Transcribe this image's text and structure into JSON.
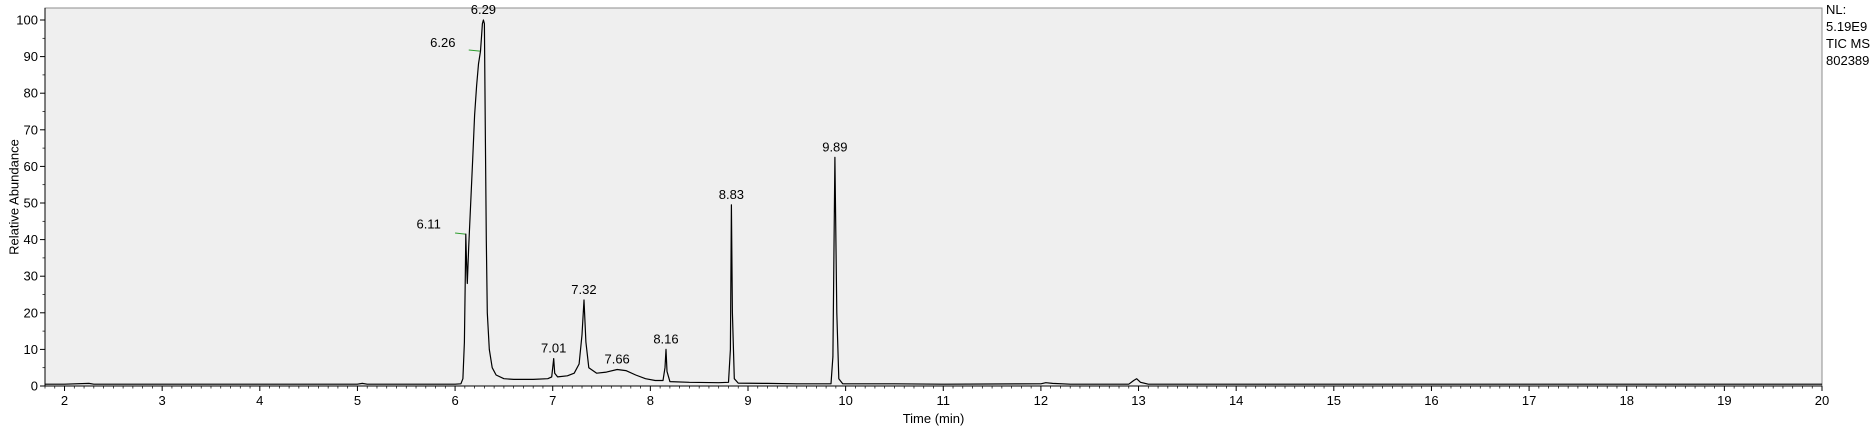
{
  "chart_data": {
    "type": "line",
    "title": "",
    "xlabel": "Time (min)",
    "ylabel": "Relative Abundance",
    "xlim": [
      1.8,
      20.0
    ],
    "ylim": [
      0,
      100
    ],
    "x_ticks": [
      2,
      3,
      4,
      5,
      6,
      7,
      8,
      9,
      10,
      11,
      12,
      13,
      14,
      15,
      16,
      17,
      18,
      19,
      20
    ],
    "y_ticks": [
      0,
      10,
      20,
      30,
      40,
      50,
      60,
      70,
      80,
      90,
      100
    ],
    "grid": false,
    "legend": "none",
    "info_lines": [
      "NL:",
      "5.19E9",
      "TIC  MS",
      "802389"
    ],
    "peak_labels": [
      {
        "text": "6.29",
        "x": 6.29,
        "y": 100
      },
      {
        "text": "6.26",
        "x": 6.26,
        "y": 91.5
      },
      {
        "text": "6.11",
        "x": 6.11,
        "y": 42
      },
      {
        "text": "7.01",
        "x": 7.01,
        "y": 7.5
      },
      {
        "text": "7.32",
        "x": 7.32,
        "y": 23.5
      },
      {
        "text": "7.66",
        "x": 7.66,
        "y": 4.5
      },
      {
        "text": "8.16",
        "x": 8.16,
        "y": 10
      },
      {
        "text": "8.83",
        "x": 8.83,
        "y": 49.5
      },
      {
        "text": "9.89",
        "x": 9.89,
        "y": 62.5
      }
    ],
    "series": [
      {
        "color": "#000000",
        "points": [
          [
            1.8,
            0.5
          ],
          [
            2.0,
            0.5
          ],
          [
            2.25,
            0.7
          ],
          [
            2.3,
            0.5
          ],
          [
            3.0,
            0.5
          ],
          [
            4.0,
            0.5
          ],
          [
            5.0,
            0.5
          ],
          [
            5.05,
            0.7
          ],
          [
            5.1,
            0.5
          ],
          [
            6.0,
            0.5
          ],
          [
            6.06,
            0.6
          ],
          [
            6.08,
            2.0
          ],
          [
            6.095,
            12.0
          ],
          [
            6.105,
            30.0
          ],
          [
            6.11,
            41.5
          ],
          [
            6.115,
            36.0
          ],
          [
            6.125,
            28.0
          ],
          [
            6.14,
            38.0
          ],
          [
            6.16,
            50.0
          ],
          [
            6.18,
            62.0
          ],
          [
            6.2,
            74.0
          ],
          [
            6.22,
            82.0
          ],
          [
            6.24,
            88.0
          ],
          [
            6.26,
            91.5
          ],
          [
            6.27,
            95.0
          ],
          [
            6.28,
            99.0
          ],
          [
            6.29,
            100.0
          ],
          [
            6.3,
            99.0
          ],
          [
            6.31,
            70.0
          ],
          [
            6.32,
            40.0
          ],
          [
            6.33,
            20.0
          ],
          [
            6.35,
            10.0
          ],
          [
            6.38,
            5.0
          ],
          [
            6.42,
            3.0
          ],
          [
            6.5,
            2.0
          ],
          [
            6.6,
            1.8
          ],
          [
            6.8,
            1.8
          ],
          [
            6.95,
            2.0
          ],
          [
            6.99,
            2.5
          ],
          [
            7.01,
            7.5
          ],
          [
            7.02,
            3.5
          ],
          [
            7.05,
            2.5
          ],
          [
            7.15,
            2.8
          ],
          [
            7.22,
            3.5
          ],
          [
            7.27,
            6.0
          ],
          [
            7.3,
            14.0
          ],
          [
            7.32,
            23.5
          ],
          [
            7.34,
            12.0
          ],
          [
            7.37,
            5.0
          ],
          [
            7.45,
            3.5
          ],
          [
            7.55,
            3.8
          ],
          [
            7.66,
            4.5
          ],
          [
            7.75,
            4.2
          ],
          [
            7.85,
            3.0
          ],
          [
            7.95,
            2.0
          ],
          [
            8.05,
            1.5
          ],
          [
            8.13,
            1.5
          ],
          [
            8.15,
            5.0
          ],
          [
            8.16,
            10.0
          ],
          [
            8.17,
            4.0
          ],
          [
            8.2,
            1.2
          ],
          [
            8.4,
            1.0
          ],
          [
            8.7,
            0.9
          ],
          [
            8.8,
            1.0
          ],
          [
            8.82,
            10.0
          ],
          [
            8.83,
            49.5
          ],
          [
            8.84,
            20.0
          ],
          [
            8.86,
            2.0
          ],
          [
            8.9,
            0.8
          ],
          [
            9.2,
            0.7
          ],
          [
            9.5,
            0.6
          ],
          [
            9.85,
            0.6
          ],
          [
            9.87,
            8.0
          ],
          [
            9.89,
            62.5
          ],
          [
            9.91,
            20.0
          ],
          [
            9.93,
            2.0
          ],
          [
            9.97,
            0.6
          ],
          [
            10.5,
            0.6
          ],
          [
            11.0,
            0.5
          ],
          [
            12.0,
            0.6
          ],
          [
            12.05,
            0.9
          ],
          [
            12.12,
            0.7
          ],
          [
            12.3,
            0.5
          ],
          [
            12.9,
            0.5
          ],
          [
            12.95,
            1.5
          ],
          [
            12.98,
            2.0
          ],
          [
            13.02,
            1.0
          ],
          [
            13.1,
            0.5
          ],
          [
            14.0,
            0.5
          ],
          [
            16.0,
            0.5
          ],
          [
            18.0,
            0.5
          ],
          [
            20.0,
            0.5
          ]
        ]
      }
    ],
    "label_leaders": [
      {
        "from": [
          6.0,
          41.8
        ],
        "to": [
          6.105,
          41.5
        ],
        "color": "#2e9e2e"
      },
      {
        "from": [
          6.14,
          91.8
        ],
        "to": [
          6.255,
          91.5
        ],
        "color": "#2e9e2e"
      }
    ]
  }
}
